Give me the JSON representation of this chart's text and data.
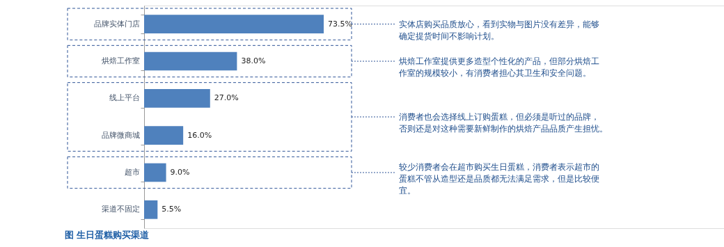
{
  "chart_data": {
    "type": "bar",
    "orientation": "horizontal",
    "title": "图 生日蛋糕购买渠道",
    "categories": [
      "品牌实体门店",
      "烘焙工作室",
      "线上平台",
      "品牌微商城",
      "超市",
      "渠道不固定"
    ],
    "values": [
      73.5,
      38.0,
      27.0,
      16.0,
      9.0,
      5.5
    ],
    "value_labels": [
      "73.5%",
      "38.0%",
      "27.0%",
      "16.0%",
      "9.0%",
      "5.5%"
    ],
    "color": "#4f81bd",
    "grid": false,
    "annotations": [
      "实体店购买品质放心，看到实物与图片没有差异，能够确定提货时间不影响计划。",
      "烘焙工作室提供更多造型个性化的产品，但部分烘焙工作室的规模较小，有消费者担心其卫生和安全问题。",
      "消费者也会选择线上订购蛋糕，但必须是听过的品牌，否则还是对这种需要新鲜制作的烘焙产品品质产生担忧。",
      "较少消费者会在超市购买生日蛋糕，消费者表示超市的蛋糕不管从造型还是品质都无法满足需求，但是比较便宜。"
    ]
  }
}
